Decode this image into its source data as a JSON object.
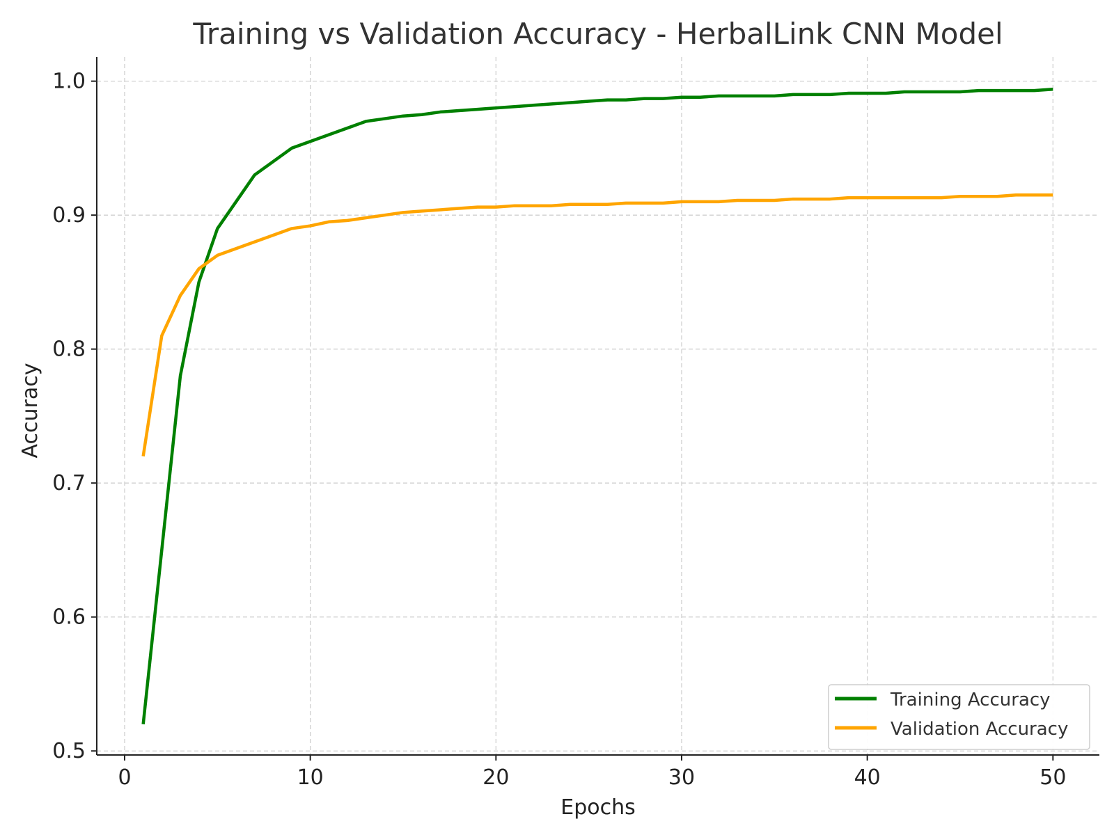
{
  "chart_data": {
    "type": "line",
    "title": "Training vs Validation Accuracy - HerbalLink CNN Model",
    "xlabel": "Epochs",
    "ylabel": "Accuracy",
    "xlim": [
      -1.5,
      52.5
    ],
    "ylim": [
      0.497,
      1.018
    ],
    "x_ticks": [
      0,
      10,
      20,
      30,
      40,
      50
    ],
    "y_ticks": [
      0.5,
      0.6,
      0.7,
      0.8,
      0.9,
      1.0
    ],
    "x_tick_labels": [
      "0",
      "10",
      "20",
      "30",
      "40",
      "50"
    ],
    "y_tick_labels": [
      "0.5",
      "0.6",
      "0.7",
      "0.8",
      "0.9",
      "1.0"
    ],
    "grid": true,
    "legend": "lower-right",
    "x": [
      1,
      2,
      3,
      4,
      5,
      6,
      7,
      8,
      9,
      10,
      11,
      12,
      13,
      14,
      15,
      16,
      17,
      18,
      19,
      20,
      21,
      22,
      23,
      24,
      25,
      26,
      27,
      28,
      29,
      30,
      31,
      32,
      33,
      34,
      35,
      36,
      37,
      38,
      39,
      40,
      41,
      42,
      43,
      44,
      45,
      46,
      47,
      48,
      49,
      50
    ],
    "series": [
      {
        "name": "Training Accuracy",
        "color": "#008000",
        "values": [
          0.52,
          0.65,
          0.78,
          0.85,
          0.89,
          0.91,
          0.93,
          0.94,
          0.95,
          0.955,
          0.96,
          0.965,
          0.97,
          0.972,
          0.974,
          0.975,
          0.977,
          0.978,
          0.979,
          0.98,
          0.981,
          0.982,
          0.983,
          0.984,
          0.985,
          0.986,
          0.986,
          0.987,
          0.987,
          0.988,
          0.988,
          0.989,
          0.989,
          0.989,
          0.989,
          0.99,
          0.99,
          0.99,
          0.991,
          0.991,
          0.991,
          0.992,
          0.992,
          0.992,
          0.992,
          0.993,
          0.993,
          0.993,
          0.993,
          0.994
        ]
      },
      {
        "name": "Validation Accuracy",
        "color": "#FFA500",
        "values": [
          0.72,
          0.81,
          0.84,
          0.86,
          0.87,
          0.875,
          0.88,
          0.885,
          0.89,
          0.892,
          0.895,
          0.896,
          0.898,
          0.9,
          0.902,
          0.903,
          0.904,
          0.905,
          0.906,
          0.906,
          0.907,
          0.907,
          0.907,
          0.908,
          0.908,
          0.908,
          0.909,
          0.909,
          0.909,
          0.91,
          0.91,
          0.91,
          0.911,
          0.911,
          0.911,
          0.912,
          0.912,
          0.912,
          0.913,
          0.913,
          0.913,
          0.913,
          0.913,
          0.913,
          0.914,
          0.914,
          0.914,
          0.915,
          0.915,
          0.915
        ]
      }
    ]
  }
}
